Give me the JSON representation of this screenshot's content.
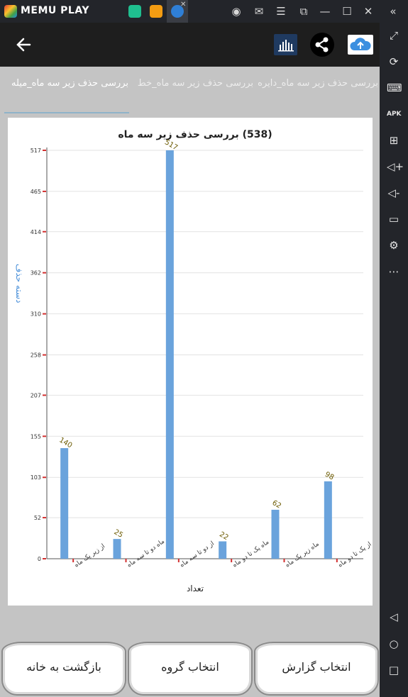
{
  "emulator": {
    "name": "MEMU PLAY"
  },
  "header": {
    "back_icon": "arrow-left-icon",
    "chart_icon": "bar-chart-icon",
    "share_icon": "share-icon",
    "cloud_icon": "cloud-upload-icon"
  },
  "tabs": [
    {
      "label": "بررسی حذف زیر سه ماه_میله",
      "selected": true
    },
    {
      "label": "بررسی حذف زیر سه ماه_خط",
      "selected": false
    },
    {
      "label": "بررسی حذف زیر سه ماه_دایره",
      "selected": false
    }
  ],
  "chart_data": {
    "type": "bar",
    "title": "(538) بررسی حذف زیر سه ماه",
    "xlabel": "تعداد",
    "ylabel": "دسته حذف",
    "categories": [
      "از زیر یک ماه",
      "ماه دو تا سه ماه",
      "از دو تا سه ماه",
      "ماه یک تا دو ماه",
      "ماه زیر یک ماه",
      "از یک تا دو ماه"
    ],
    "values": [
      140,
      25,
      517,
      22,
      62,
      98
    ],
    "value_labels": [
      "140",
      "25",
      "517",
      "22",
      "62",
      "98"
    ],
    "yticks": [
      "0",
      "52",
      "103",
      "155",
      "207",
      "258",
      "310",
      "362",
      "414",
      "465",
      "517"
    ],
    "ylim": [
      0,
      517
    ],
    "grid": true,
    "bar_color": "#6aa3dc",
    "tick_color": "#d32f2f"
  },
  "buttons": [
    {
      "label": "انتخاب گزارش"
    },
    {
      "label": "انتخاب گروه"
    },
    {
      "label": "بازگشت به خانه"
    }
  ],
  "colors": {
    "header_bg": "#1e1e1e",
    "screen_bg": "#c4c4c4",
    "emulator_bg": "#23252a"
  }
}
